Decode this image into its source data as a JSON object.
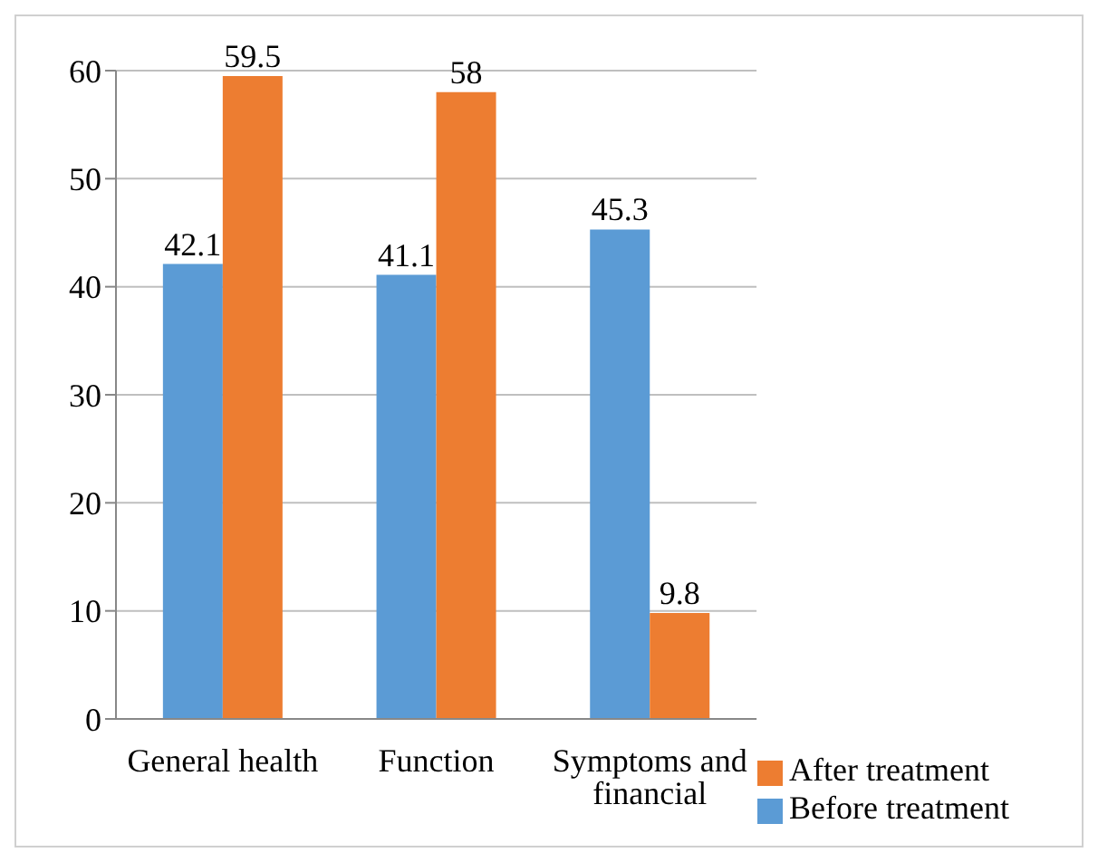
{
  "chart_data": {
    "type": "bar",
    "categories": [
      "General health",
      "Function",
      "Symptoms and financial"
    ],
    "series": [
      {
        "name": "Before treatment",
        "color": "#5b9bd5",
        "values": [
          42.1,
          41.1,
          45.3
        ]
      },
      {
        "name": "After treatment",
        "color": "#ed7d31",
        "values": [
          59.5,
          58,
          9.8
        ]
      }
    ],
    "ylim": [
      0,
      60
    ],
    "yticks": [
      0,
      10,
      20,
      30,
      40,
      50,
      60
    ],
    "grid": "y",
    "legend": "bottom right",
    "data_labels": true
  }
}
